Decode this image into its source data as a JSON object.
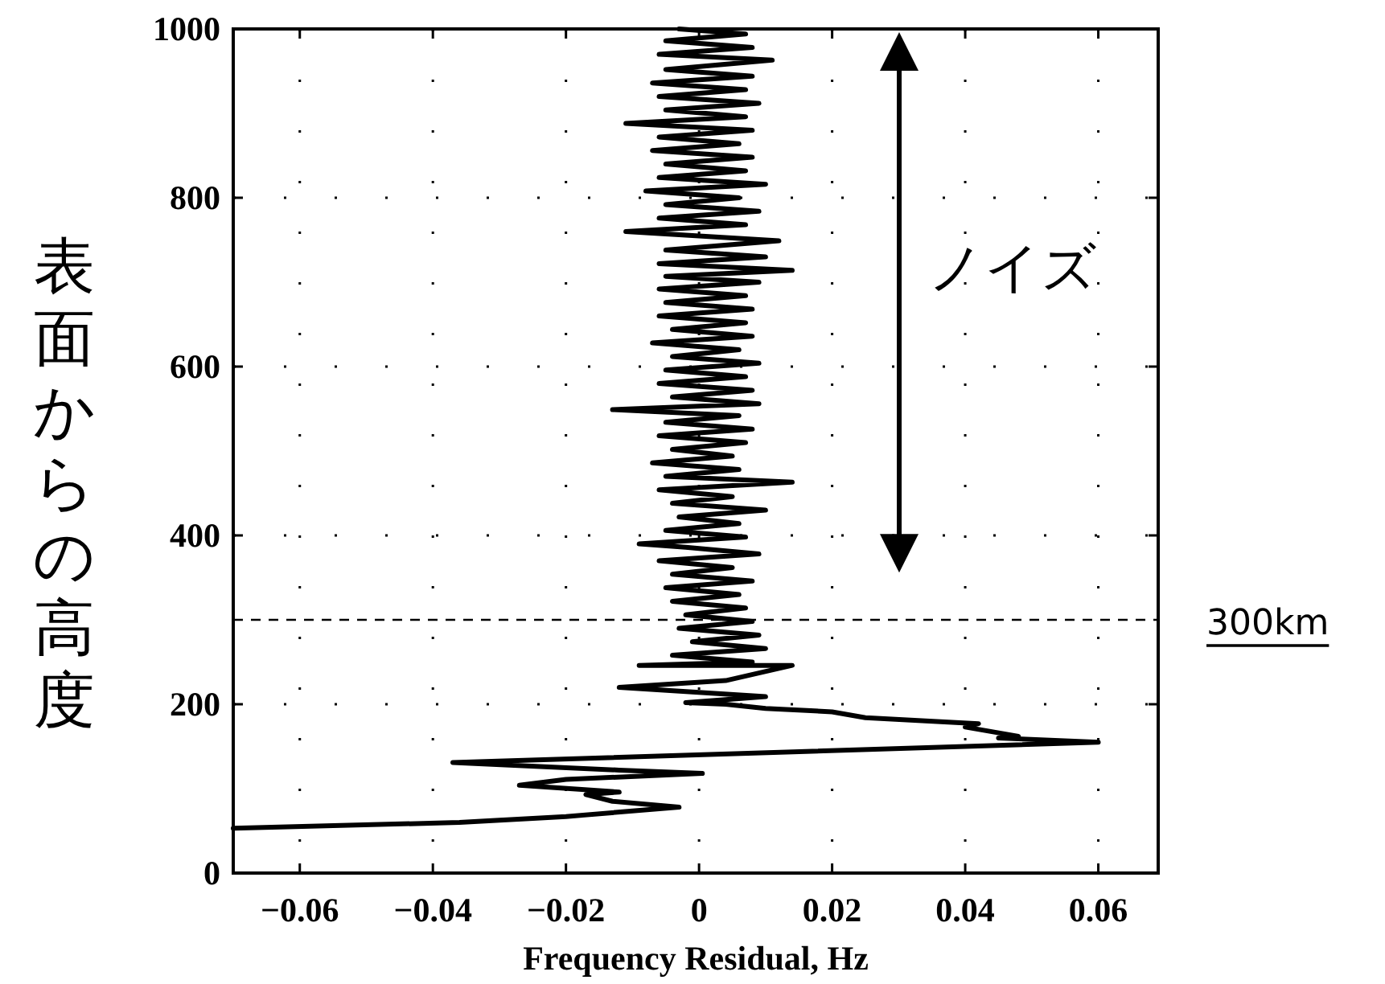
{
  "chart_data": {
    "type": "line",
    "xlabel": "Frequency Residual, Hz",
    "ylabel": "表面からの高度",
    "annotations": [
      "ノイズ"
    ],
    "ref_lines": [
      {
        "axis": "y",
        "value": 300,
        "label": "300km",
        "line_style": "dashed",
        "color": "#000000"
      }
    ],
    "xlim": [
      -0.07,
      0.069
    ],
    "ylim": [
      0,
      1000
    ],
    "xticks": [
      {
        "value": -0.06,
        "label": "−0.06"
      },
      {
        "value": -0.04,
        "label": "−0.04"
      },
      {
        "value": -0.02,
        "label": "−0.02"
      },
      0,
      0.02,
      0.04,
      0.06
    ],
    "yticks": [
      0,
      200,
      400,
      600,
      800,
      1000
    ],
    "grid": true,
    "line_style": "solid",
    "series": [
      {
        "color": "#000000",
        "x": [
          -0.07,
          -0.036,
          -0.02,
          -0.003,
          -0.013,
          -0.017,
          -0.012,
          -0.027,
          -0.02,
          0.0005,
          -0.012,
          -0.037,
          0.06,
          0.045,
          0.048,
          0.04,
          0.042,
          0.025,
          0.02,
          0.01,
          0.004,
          -0.002,
          0.01,
          -0.012,
          0.004,
          0.014,
          -0.009,
          0.008,
          -0.004,
          0.01,
          -0.001,
          0.009,
          -0.003,
          0.008,
          -0.002,
          0.007,
          -0.004,
          0.006,
          -0.005,
          0.008,
          -0.004,
          0.005,
          -0.006,
          0.009,
          -0.002,
          -0.009,
          0.007,
          -0.005,
          0.006,
          -0.003,
          0.01,
          -0.004,
          0.005,
          -0.006,
          0.014,
          -0.005,
          0.006,
          -0.007,
          0.005,
          -0.004,
          0.007,
          -0.006,
          0.008,
          -0.005,
          0.006,
          -0.013,
          0.009,
          -0.004,
          0.008,
          -0.006,
          0.007,
          -0.005,
          0.009,
          -0.004,
          0.006,
          -0.007,
          0.008,
          -0.004,
          0.007,
          -0.006,
          0.008,
          -0.005,
          0.007,
          -0.006,
          0.009,
          -0.005,
          0.014,
          -0.006,
          0.01,
          -0.005,
          0.012,
          -0.011,
          0.007,
          -0.006,
          0.009,
          -0.005,
          0.006,
          -0.008,
          0.01,
          -0.006,
          0.007,
          -0.005,
          0.008,
          -0.007,
          0.006,
          -0.006,
          0.008,
          -0.011,
          0.007,
          -0.005,
          0.009,
          -0.006,
          0.007,
          -0.007,
          0.008,
          -0.005,
          0.011,
          -0.006,
          0.008,
          -0.005,
          0.007,
          -0.003
        ],
        "values": [
          53,
          60,
          67,
          78,
          85,
          93,
          96,
          104,
          111,
          118,
          122,
          131,
          155,
          160,
          162,
          173,
          177,
          184,
          191,
          195,
          200,
          202,
          209,
          220,
          228,
          246,
          246,
          250,
          258,
          266,
          274,
          282,
          290,
          298,
          306,
          314,
          322,
          330,
          338,
          346,
          354,
          362,
          370,
          378,
          386,
          390,
          398,
          406,
          414,
          422,
          430,
          438,
          446,
          454,
          463,
          470,
          478,
          486,
          494,
          502,
          510,
          518,
          526,
          534,
          542,
          549,
          556,
          564,
          572,
          580,
          588,
          596,
          604,
          612,
          620,
          628,
          636,
          644,
          652,
          660,
          668,
          676,
          684,
          692,
          700,
          707,
          714,
          722,
          730,
          738,
          749,
          760,
          768,
          776,
          784,
          792,
          800,
          808,
          816,
          824,
          832,
          840,
          848,
          856,
          864,
          872,
          880,
          888,
          896,
          904,
          912,
          920,
          928,
          936,
          944,
          952,
          963,
          970,
          978,
          986,
          994,
          1000
        ]
      }
    ]
  }
}
